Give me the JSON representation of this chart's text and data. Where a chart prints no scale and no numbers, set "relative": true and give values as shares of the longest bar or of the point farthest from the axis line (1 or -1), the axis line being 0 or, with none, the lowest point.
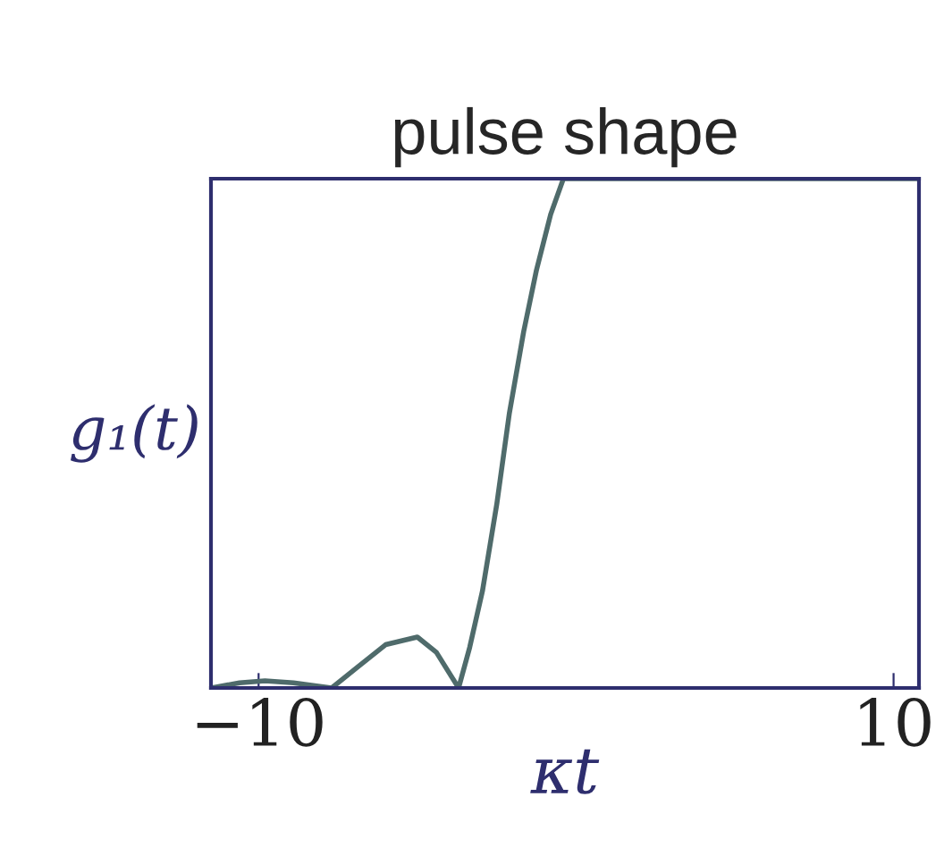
{
  "chart_data": {
    "type": "line",
    "title": "pulse shape",
    "xlabel": "κt",
    "ylabel": "g₁(t)",
    "relative": true,
    "xlim": [
      -11.5,
      10.8
    ],
    "xticks": [
      {
        "value": -10,
        "label": "−10"
      },
      10
    ],
    "series": [
      {
        "color": "#4f6b6b",
        "x": [
          -11.5,
          -10.6,
          -9.8,
          -8.9,
          -7.7,
          -6.9,
          -6.0,
          -5.0,
          -4.4,
          -3.7,
          -3.35,
          -2.95,
          -2.5,
          -2.1,
          -1.65,
          -1.25,
          -0.8,
          -0.4,
          2,
          5,
          8,
          10.8
        ],
        "values": [
          0,
          0.01,
          0.014,
          0.01,
          0,
          0.04,
          0.085,
          0.1,
          0.07,
          0,
          0.08,
          0.19,
          0.36,
          0.54,
          0.7,
          0.82,
          0.93,
          1,
          1,
          1,
          1,
          1
        ]
      }
    ],
    "grid": false,
    "legend": false
  }
}
